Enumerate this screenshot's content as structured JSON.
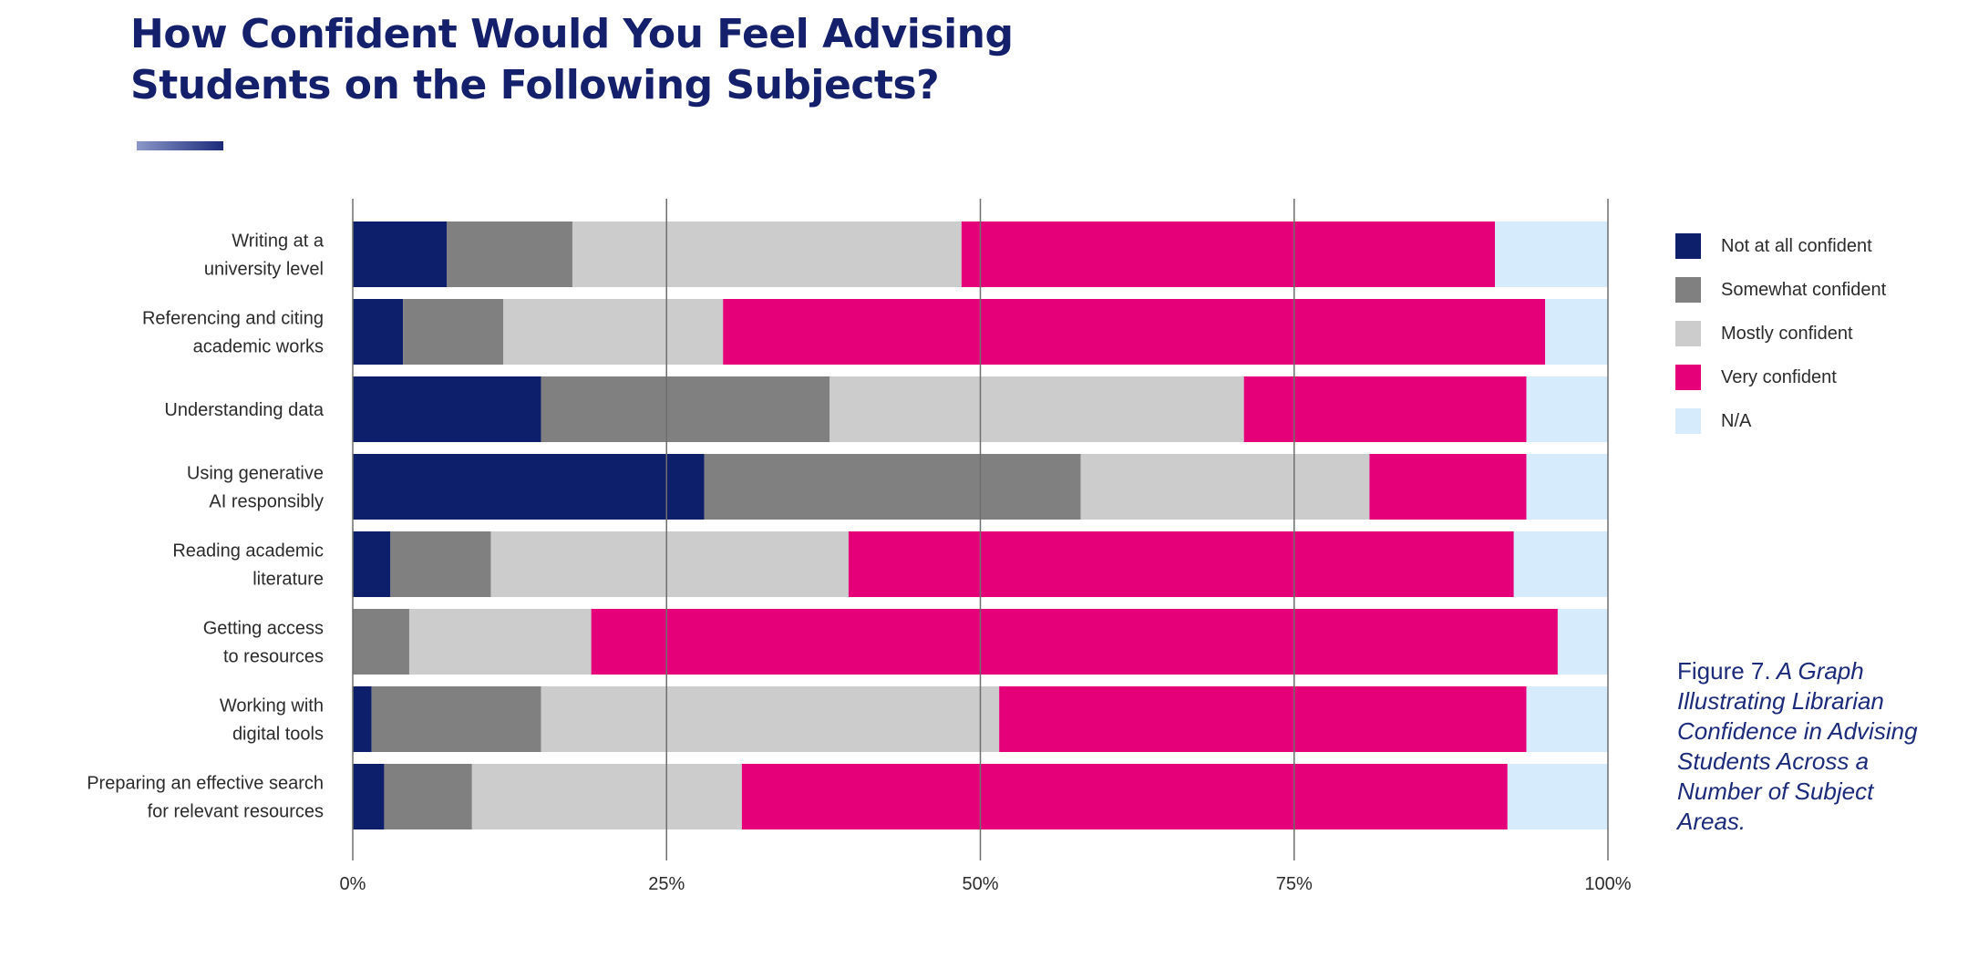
{
  "title_lines": [
    "How Confident Would You Feel Advising",
    "Students on the Following Subjects?"
  ],
  "chart_data": {
    "type": "bar",
    "orientation": "horizontal",
    "stacked": true,
    "categories": [
      [
        "Writing at a",
        "university level"
      ],
      [
        "Referencing and citing",
        "academic works"
      ],
      [
        "Understanding data"
      ],
      [
        "Using generative",
        "AI responsibly"
      ],
      [
        "Reading academic",
        "literature"
      ],
      [
        "Getting access",
        "to resources"
      ],
      [
        "Working with",
        "digital tools"
      ],
      [
        "Preparing an effective search",
        "for relevant resources"
      ]
    ],
    "series": [
      {
        "name": "Not at all confident",
        "color": "#0d1f6b",
        "values": [
          7.5,
          4,
          15,
          28,
          3,
          0,
          1.5,
          2.5
        ]
      },
      {
        "name": "Somewhat confident",
        "color": "#808080",
        "values": [
          10,
          8,
          23,
          30,
          8,
          4.5,
          13.5,
          7
        ]
      },
      {
        "name": "Mostly confident",
        "color": "#cccccc",
        "values": [
          31,
          17.5,
          33,
          23,
          28.5,
          14.5,
          36.5,
          21.5
        ]
      },
      {
        "name": "Very confident",
        "color": "#e5007a",
        "values": [
          42.5,
          65.5,
          22.5,
          12.5,
          53,
          77,
          42,
          61
        ]
      },
      {
        "name": "N/A",
        "color": "#d6ebfb",
        "values": [
          9,
          5,
          6.5,
          6.5,
          7.5,
          4,
          6.5,
          8
        ]
      }
    ],
    "x_ticks": [
      "0%",
      "25%",
      "50%",
      "75%",
      "100%"
    ],
    "xlim": [
      0,
      100
    ],
    "legend_position": "right"
  },
  "caption": {
    "label": "Figure 7.",
    "text": " A Graph Illustrating Librarian Confidence in Advising Students Across a Number of Subject Areas."
  }
}
